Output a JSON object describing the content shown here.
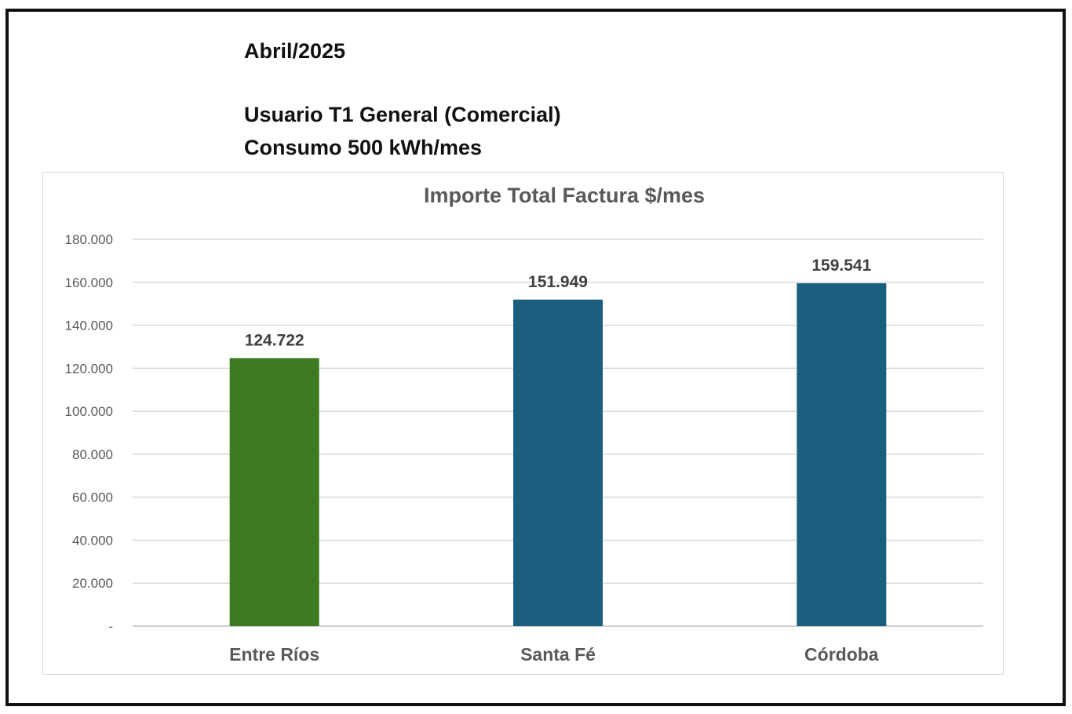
{
  "header": {
    "period": "Abril/2025",
    "user_type": "Usuario T1 General (Comercial)",
    "consumption": "Consumo  500 kWh/mes"
  },
  "chart_data": {
    "type": "bar",
    "title": "Importe Total  Factura $/mes",
    "xlabel": "",
    "ylabel": "",
    "categories": [
      "Entre Ríos",
      "Santa Fé",
      "Córdoba"
    ],
    "values": [
      124722,
      151949,
      159541
    ],
    "value_labels": [
      "124.722",
      "151.949",
      "159.541"
    ],
    "bar_colors": [
      "#3d7a22",
      "#1a5e80",
      "#1a5e80"
    ],
    "ylim": [
      0,
      180000
    ],
    "yticks": [
      0,
      20000,
      40000,
      60000,
      80000,
      100000,
      120000,
      140000,
      160000,
      180000
    ],
    "ytick_labels": [
      "-",
      "20.000",
      "40.000",
      "60.000",
      "80.000",
      "100.000",
      "120.000",
      "140.000",
      "160.000",
      "180.000"
    ],
    "grid": true,
    "legend": "none"
  }
}
